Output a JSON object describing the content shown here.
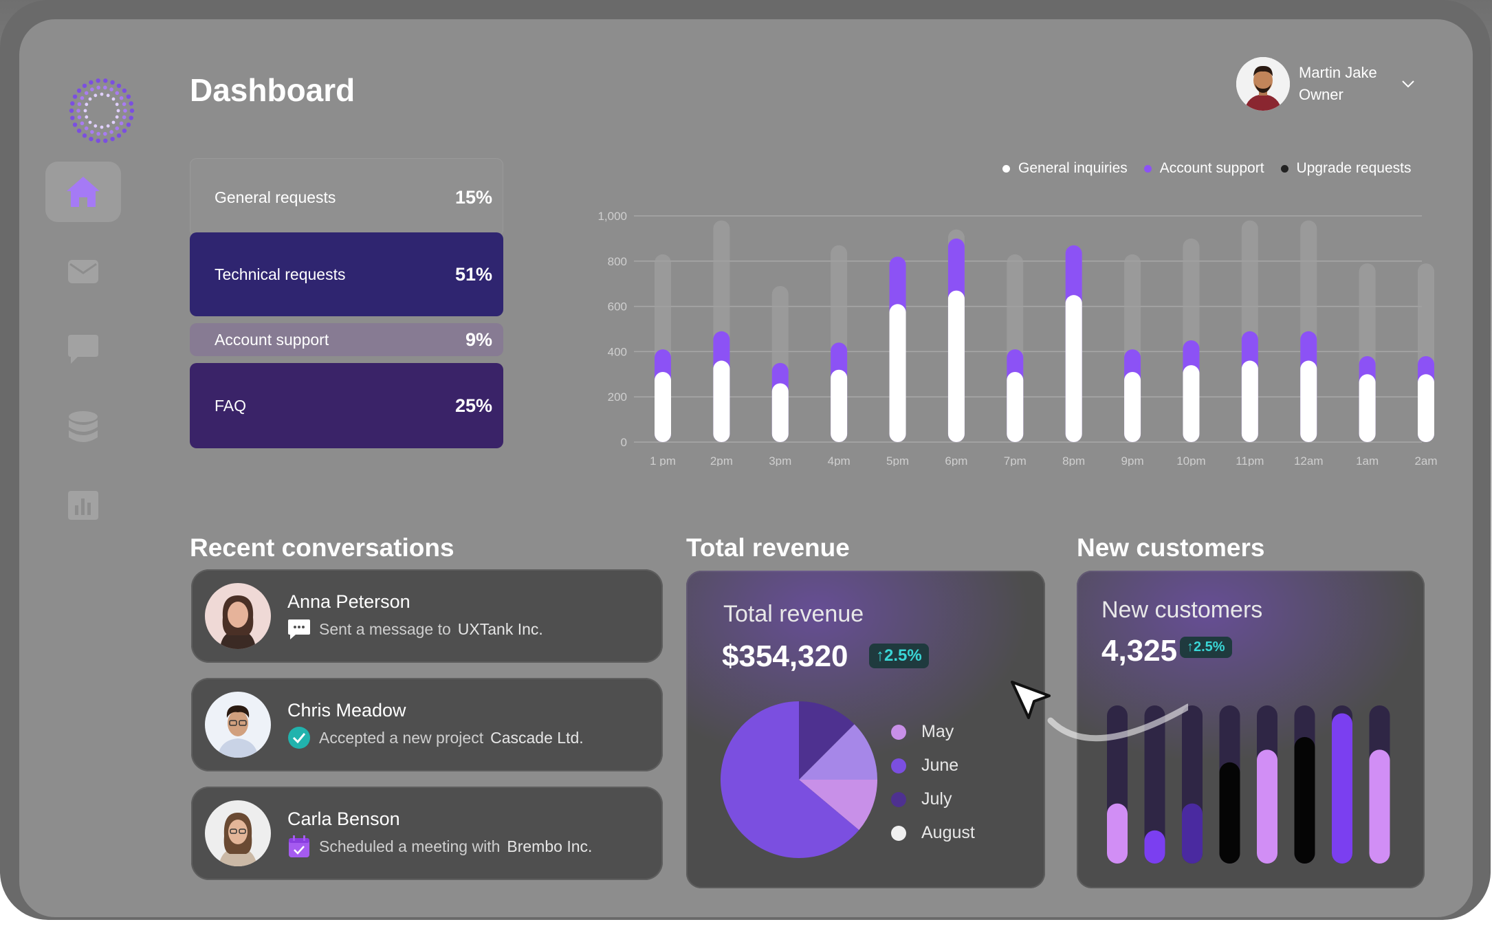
{
  "page": {
    "title": "Dashboard"
  },
  "user": {
    "name": "Martin Jake",
    "role": "Owner"
  },
  "sidebar": {
    "items": [
      {
        "name": "home",
        "icon": "home-icon",
        "active": true
      },
      {
        "name": "mail",
        "icon": "mail-icon",
        "active": false
      },
      {
        "name": "chat",
        "icon": "chat-icon",
        "active": false
      },
      {
        "name": "database",
        "icon": "database-icon",
        "active": false
      },
      {
        "name": "analytics",
        "icon": "bar-chart-icon",
        "active": false
      }
    ]
  },
  "categories": [
    {
      "label": "General requests",
      "pct": "15%"
    },
    {
      "label": "Technical requests",
      "pct": "51%"
    },
    {
      "label": "Account support",
      "pct": "9%"
    },
    {
      "label": "FAQ",
      "pct": "25%"
    }
  ],
  "chart_data": {
    "type": "bar",
    "categories": [
      "1 pm",
      "2pm",
      "3pm",
      "4pm",
      "5pm",
      "6pm",
      "7pm",
      "8pm",
      "9pm",
      "10pm",
      "11pm",
      "12am",
      "1am",
      "2am"
    ],
    "series": [
      {
        "name": "General inquiries",
        "values": [
          310,
          360,
          260,
          320,
          610,
          670,
          310,
          650,
          310,
          340,
          360,
          360,
          300,
          300
        ],
        "color": "#ffffff"
      },
      {
        "name": "Account support",
        "values": [
          410,
          490,
          350,
          440,
          820,
          900,
          410,
          870,
          410,
          450,
          490,
          490,
          380,
          380
        ],
        "color": "#8c52f5"
      },
      {
        "name": "Upgrade requests",
        "values": [
          830,
          980,
          690,
          870,
          820,
          940,
          830,
          870,
          830,
          900,
          980,
          980,
          790,
          790
        ],
        "color": "#a0a0a0"
      }
    ],
    "yticks": [
      "1,000",
      "800",
      "600",
      "400",
      "200",
      "0"
    ],
    "ylim": [
      0,
      1000
    ],
    "grid": true,
    "legend_position": "top-right"
  },
  "sections": {
    "conversations": "Recent conversations",
    "revenue": "Total revenue",
    "customers": "New customers"
  },
  "conversations": [
    {
      "name": "Anna Peterson",
      "action": "Sent a message to",
      "company": "UXTank Inc.",
      "icon": "message-icon"
    },
    {
      "name": "Chris Meadow",
      "action": "Accepted a new project",
      "company": "Cascade Ltd.",
      "icon": "check-icon"
    },
    {
      "name": "Carla Benson",
      "action": "Scheduled a meeting with",
      "company": "Brembo Inc.",
      "icon": "calendar-icon"
    }
  ],
  "revenue": {
    "title": "Total revenue",
    "value": "$354,320",
    "change": "↑2.5%",
    "pie": [
      {
        "label": "May",
        "value": 0.09,
        "color": "#c890e8"
      },
      {
        "label": "June",
        "value": 0.61,
        "color": "#7b4fe0"
      },
      {
        "label": "July",
        "value": 0.18,
        "color": "#4e3190"
      },
      {
        "label": "August",
        "value": 0.12,
        "color": "#f0f0f0"
      }
    ]
  },
  "customers": {
    "title": "New customers",
    "value": "4,325",
    "change": "↑2.5%",
    "bars": [
      {
        "fill": 0.38,
        "color": "#d18ef5"
      },
      {
        "fill": 0.21,
        "color": "#7b3ff0"
      },
      {
        "fill": 0.38,
        "color": "#4a2aa0"
      },
      {
        "fill": 0.64,
        "color": "#050505"
      },
      {
        "fill": 0.72,
        "color": "#d18ef5"
      },
      {
        "fill": 0.8,
        "color": "#050505"
      },
      {
        "fill": 0.95,
        "color": "#7b3ff0"
      },
      {
        "fill": 0.72,
        "color": "#d18ef5"
      }
    ]
  }
}
